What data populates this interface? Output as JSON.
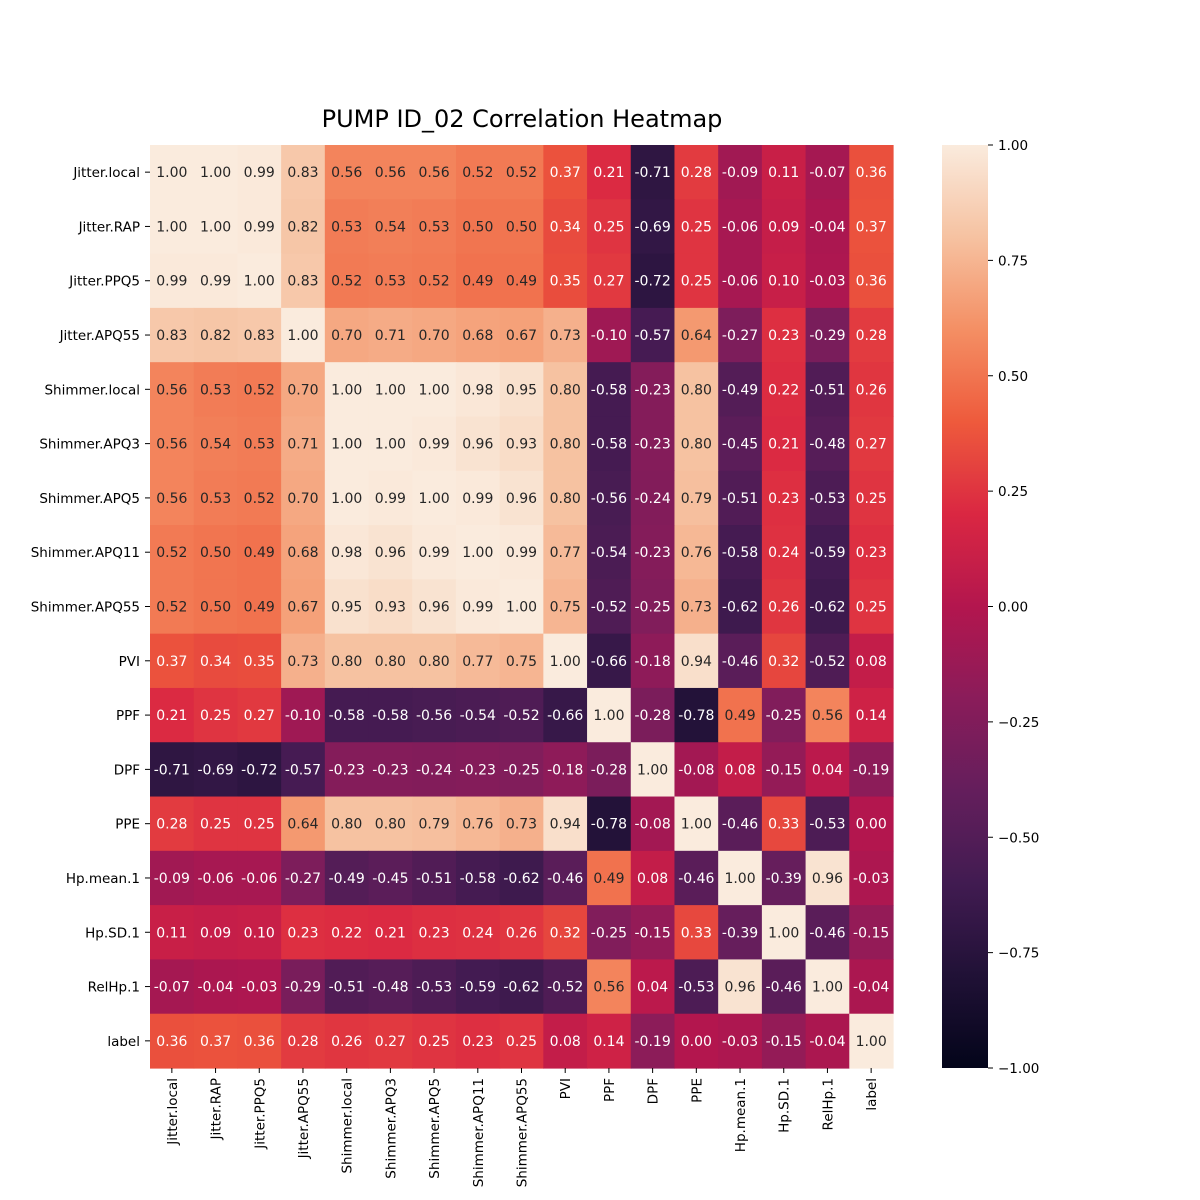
{
  "chart_data": {
    "type": "heatmap",
    "title": "PUMP ID_02 Correlation Heatmap",
    "xlabel": "",
    "ylabel": "",
    "labels": [
      "Jitter.local",
      "Jitter.RAP",
      "Jitter.PPQ5",
      "Jitter.APQ55",
      "Shimmer.local",
      "Shimmer.APQ3",
      "Shimmer.APQ5",
      "Shimmer.APQ11",
      "Shimmer.APQ55",
      "PVI",
      "PPF",
      "DPF",
      "PPE",
      "Hp.mean.1",
      "Hp.SD.1",
      "RelHp.1",
      "label"
    ],
    "matrix": [
      [
        1.0,
        1.0,
        0.99,
        0.83,
        0.56,
        0.56,
        0.56,
        0.52,
        0.52,
        0.37,
        0.21,
        -0.71,
        0.28,
        -0.09,
        0.11,
        -0.07,
        0.36
      ],
      [
        1.0,
        1.0,
        0.99,
        0.82,
        0.53,
        0.54,
        0.53,
        0.5,
        0.5,
        0.34,
        0.25,
        -0.69,
        0.25,
        -0.06,
        0.09,
        -0.04,
        0.37
      ],
      [
        0.99,
        0.99,
        1.0,
        0.83,
        0.52,
        0.53,
        0.52,
        0.49,
        0.49,
        0.35,
        0.27,
        -0.72,
        0.25,
        -0.06,
        0.1,
        -0.03,
        0.36
      ],
      [
        0.83,
        0.82,
        0.83,
        1.0,
        0.7,
        0.71,
        0.7,
        0.68,
        0.67,
        0.73,
        -0.1,
        -0.57,
        0.64,
        -0.27,
        0.23,
        -0.29,
        0.28
      ],
      [
        0.56,
        0.53,
        0.52,
        0.7,
        1.0,
        1.0,
        1.0,
        0.98,
        0.95,
        0.8,
        -0.58,
        -0.23,
        0.8,
        -0.49,
        0.22,
        -0.51,
        0.26
      ],
      [
        0.56,
        0.54,
        0.53,
        0.71,
        1.0,
        1.0,
        0.99,
        0.96,
        0.93,
        0.8,
        -0.58,
        -0.23,
        0.8,
        -0.45,
        0.21,
        -0.48,
        0.27
      ],
      [
        0.56,
        0.53,
        0.52,
        0.7,
        1.0,
        0.99,
        1.0,
        0.99,
        0.96,
        0.8,
        -0.56,
        -0.24,
        0.79,
        -0.51,
        0.23,
        -0.53,
        0.25
      ],
      [
        0.52,
        0.5,
        0.49,
        0.68,
        0.98,
        0.96,
        0.99,
        1.0,
        0.99,
        0.77,
        -0.54,
        -0.23,
        0.76,
        -0.58,
        0.24,
        -0.59,
        0.23
      ],
      [
        0.52,
        0.5,
        0.49,
        0.67,
        0.95,
        0.93,
        0.96,
        0.99,
        1.0,
        0.75,
        -0.52,
        -0.25,
        0.73,
        -0.62,
        0.26,
        -0.62,
        0.25
      ],
      [
        0.37,
        0.34,
        0.35,
        0.73,
        0.8,
        0.8,
        0.8,
        0.77,
        0.75,
        1.0,
        -0.66,
        -0.18,
        0.94,
        -0.46,
        0.32,
        -0.52,
        0.08
      ],
      [
        0.21,
        0.25,
        0.27,
        -0.1,
        -0.58,
        -0.58,
        -0.56,
        -0.54,
        -0.52,
        -0.66,
        1.0,
        -0.28,
        -0.78,
        0.49,
        -0.25,
        0.56,
        0.14
      ],
      [
        -0.71,
        -0.69,
        -0.72,
        -0.57,
        -0.23,
        -0.23,
        -0.24,
        -0.23,
        -0.25,
        -0.18,
        -0.28,
        1.0,
        -0.08,
        0.08,
        -0.15,
        0.04,
        -0.19
      ],
      [
        0.28,
        0.25,
        0.25,
        0.64,
        0.8,
        0.8,
        0.79,
        0.76,
        0.73,
        0.94,
        -0.78,
        -0.08,
        1.0,
        -0.46,
        0.33,
        -0.53,
        0.0
      ],
      [
        -0.09,
        -0.06,
        -0.06,
        -0.27,
        -0.49,
        -0.45,
        -0.51,
        -0.58,
        -0.62,
        -0.46,
        0.49,
        0.08,
        -0.46,
        1.0,
        -0.39,
        0.96,
        -0.03
      ],
      [
        0.11,
        0.09,
        0.1,
        0.23,
        0.22,
        0.21,
        0.23,
        0.24,
        0.26,
        0.32,
        -0.25,
        -0.15,
        0.33,
        -0.39,
        1.0,
        -0.46,
        -0.15
      ],
      [
        -0.07,
        -0.04,
        -0.03,
        -0.29,
        -0.51,
        -0.48,
        -0.53,
        -0.59,
        -0.62,
        -0.52,
        0.56,
        0.04,
        -0.53,
        0.96,
        -0.46,
        1.0,
        -0.04
      ],
      [
        0.36,
        0.37,
        0.36,
        0.28,
        0.26,
        0.27,
        0.25,
        0.23,
        0.25,
        0.08,
        0.14,
        -0.19,
        0.0,
        -0.03,
        -0.15,
        -0.04,
        1.0
      ]
    ],
    "value_range": [
      -1.0,
      1.0
    ],
    "colorbar": {
      "ticks": [
        1.0,
        0.75,
        0.5,
        0.25,
        0.0,
        -0.25,
        -0.5,
        -0.75,
        -1.0
      ],
      "tick_labels": [
        "1.00",
        "0.75",
        "0.50",
        "0.25",
        "0.00",
        "−0.25",
        "−0.50",
        "−0.75",
        "−1.00"
      ]
    },
    "colormap": "rocket",
    "annotation_format": "2 decimals"
  }
}
